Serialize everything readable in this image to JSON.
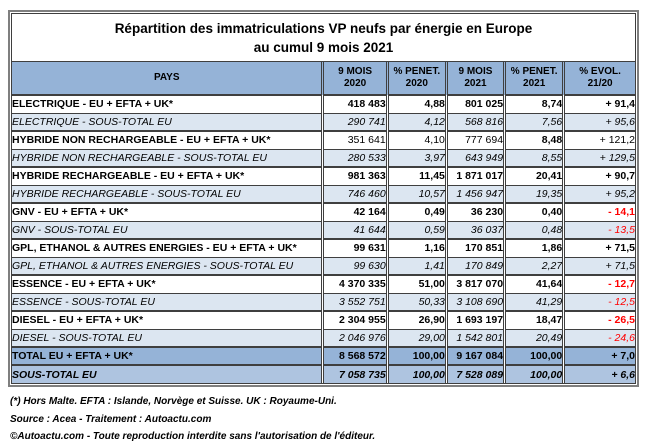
{
  "title": {
    "line1": "Répartition des immatriculations VP neufs par énergie en Europe",
    "line2": "au cumul 9 mois 2021"
  },
  "table": {
    "columns": [
      {
        "line1": "PAYS",
        "line2": ""
      },
      {
        "line1": "9 MOIS",
        "line2": "2020"
      },
      {
        "line1": "% PENET.",
        "line2": "2020"
      },
      {
        "line1": "9 MOIS",
        "line2": "2021"
      },
      {
        "line1": "% PENET.",
        "line2": "2021"
      },
      {
        "line1": "% EVOL.",
        "line2": "21/20"
      }
    ],
    "rows": [
      {
        "label": "ELECTRIQUE - EU + EFTA + UK*",
        "style": "main",
        "values": [
          "418 483",
          "4,88",
          "801 025",
          "8,74",
          "+ 91,4"
        ]
      },
      {
        "label": "ELECTRIQUE - SOUS-TOTAL EU",
        "style": "sub",
        "values": [
          "290 741",
          "4,12",
          "568 816",
          "7,56",
          "+ 95,6"
        ]
      },
      {
        "label": "HYBRIDE NON RECHARGEABLE - EU + EFTA + UK*",
        "style": "main",
        "values": [
          "351 641",
          "4,10",
          "777 694",
          "8,48",
          "+ 121,2"
        ],
        "value_bold": [
          false,
          false,
          false,
          true,
          false
        ]
      },
      {
        "label": "HYBRIDE NON RECHARGEABLE - SOUS-TOTAL EU",
        "style": "sub",
        "values": [
          "280 533",
          "3,97",
          "643 949",
          "8,55",
          "+ 129,5"
        ]
      },
      {
        "label": "HYBRIDE RECHARGEABLE - EU + EFTA + UK*",
        "style": "main",
        "values": [
          "981 363",
          "11,45",
          "1 871 017",
          "20,41",
          "+ 90,7"
        ]
      },
      {
        "label": "HYBRIDE RECHARGEABLE - SOUS-TOTAL EU",
        "style": "sub",
        "values": [
          "746 460",
          "10,57",
          "1 456 947",
          "19,35",
          "+ 95,2"
        ]
      },
      {
        "label": "GNV - EU + EFTA + UK*",
        "style": "main",
        "values": [
          "42 164",
          "0,49",
          "36 230",
          "0,40",
          "- 14,1"
        ]
      },
      {
        "label": "GNV - SOUS-TOTAL EU",
        "style": "sub",
        "values": [
          "41 644",
          "0,59",
          "36 037",
          "0,48",
          "- 13,5"
        ]
      },
      {
        "label": "GPL, ETHANOL & AUTRES ENERGIES - EU + EFTA + UK*",
        "style": "main",
        "values": [
          "99 631",
          "1,16",
          "170 851",
          "1,86",
          "+ 71,5"
        ]
      },
      {
        "label": "GPL, ETHANOL & AUTRES ENERGIES - SOUS-TOTAL EU",
        "style": "sub",
        "values": [
          "99 630",
          "1,41",
          "170 849",
          "2,27",
          "+ 71,5"
        ]
      },
      {
        "label": "ESSENCE - EU + EFTA + UK*",
        "style": "main",
        "values": [
          "4 370 335",
          "51,00",
          "3 817 070",
          "41,64",
          "- 12,7"
        ]
      },
      {
        "label": "ESSENCE - SOUS-TOTAL EU",
        "style": "sub",
        "values": [
          "3 552 751",
          "50,33",
          "3 108 690",
          "41,29",
          "- 12,5"
        ]
      },
      {
        "label": "DIESEL - EU + EFTA + UK*",
        "style": "main",
        "values": [
          "2 304 955",
          "26,90",
          "1 693 197",
          "18,47",
          "- 26,5"
        ]
      },
      {
        "label": "DIESEL - SOUS-TOTAL EU",
        "style": "sub",
        "values": [
          "2 046 976",
          "29,00",
          "1 542 801",
          "20,49",
          "- 24,6"
        ]
      },
      {
        "label": "TOTAL EU + EFTA + UK*",
        "style": "total",
        "values": [
          "8 568 572",
          "100,00",
          "9 167 084",
          "100,00",
          "+ 7,0"
        ]
      },
      {
        "label": "SOUS-TOTAL EU",
        "style": "subtotal",
        "values": [
          "7 058 735",
          "100,00",
          "7 528 089",
          "100,00",
          "+ 6,6"
        ]
      }
    ]
  },
  "footnotes": [
    "(*) Hors Malte. EFTA : Islande, Norvège et Suisse. UK : Royaume-Uni.",
    "Source : Acea - Traitement : Autoactu.com",
    "©Autoactu.com - Toute reproduction interdite sans l'autorisation de l'éditeur."
  ],
  "colors": {
    "frame_border": "#7F7F7F",
    "cell_border": "#3F3F3F",
    "header_bg": "#95B3D7",
    "sub_row_bg": "#DCE6F1",
    "total_row_bg": "#95B3D7",
    "subtotal_row_bg": "#AEC4E0",
    "negative_value": "#FF0000"
  }
}
